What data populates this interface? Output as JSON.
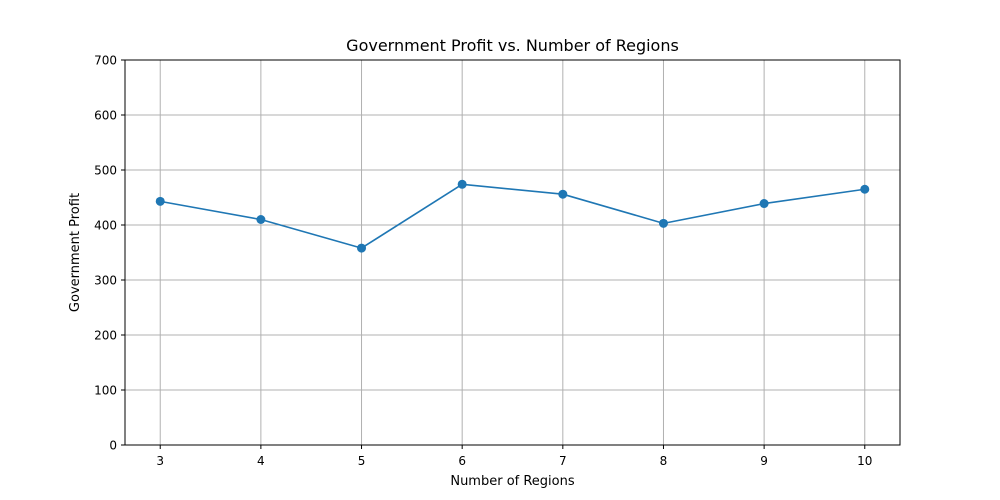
{
  "chart_data": {
    "type": "line",
    "title": "Government Profit vs. Number of Regions",
    "xlabel": "Number of Regions",
    "ylabel": "Government Profit",
    "x": [
      3,
      4,
      5,
      6,
      7,
      8,
      9,
      10
    ],
    "series": [
      {
        "values": [
          443,
          410,
          358,
          474,
          456,
          403,
          439,
          465
        ],
        "color": "#1f77b4",
        "marker": "circle"
      }
    ],
    "xlim": [
      2.65,
      10.35
    ],
    "ylim": [
      0,
      700
    ],
    "xticks": [
      3,
      4,
      5,
      6,
      7,
      8,
      9,
      10
    ],
    "yticks": [
      0,
      100,
      200,
      300,
      400,
      500,
      600,
      700
    ],
    "grid": true,
    "legend": false
  }
}
